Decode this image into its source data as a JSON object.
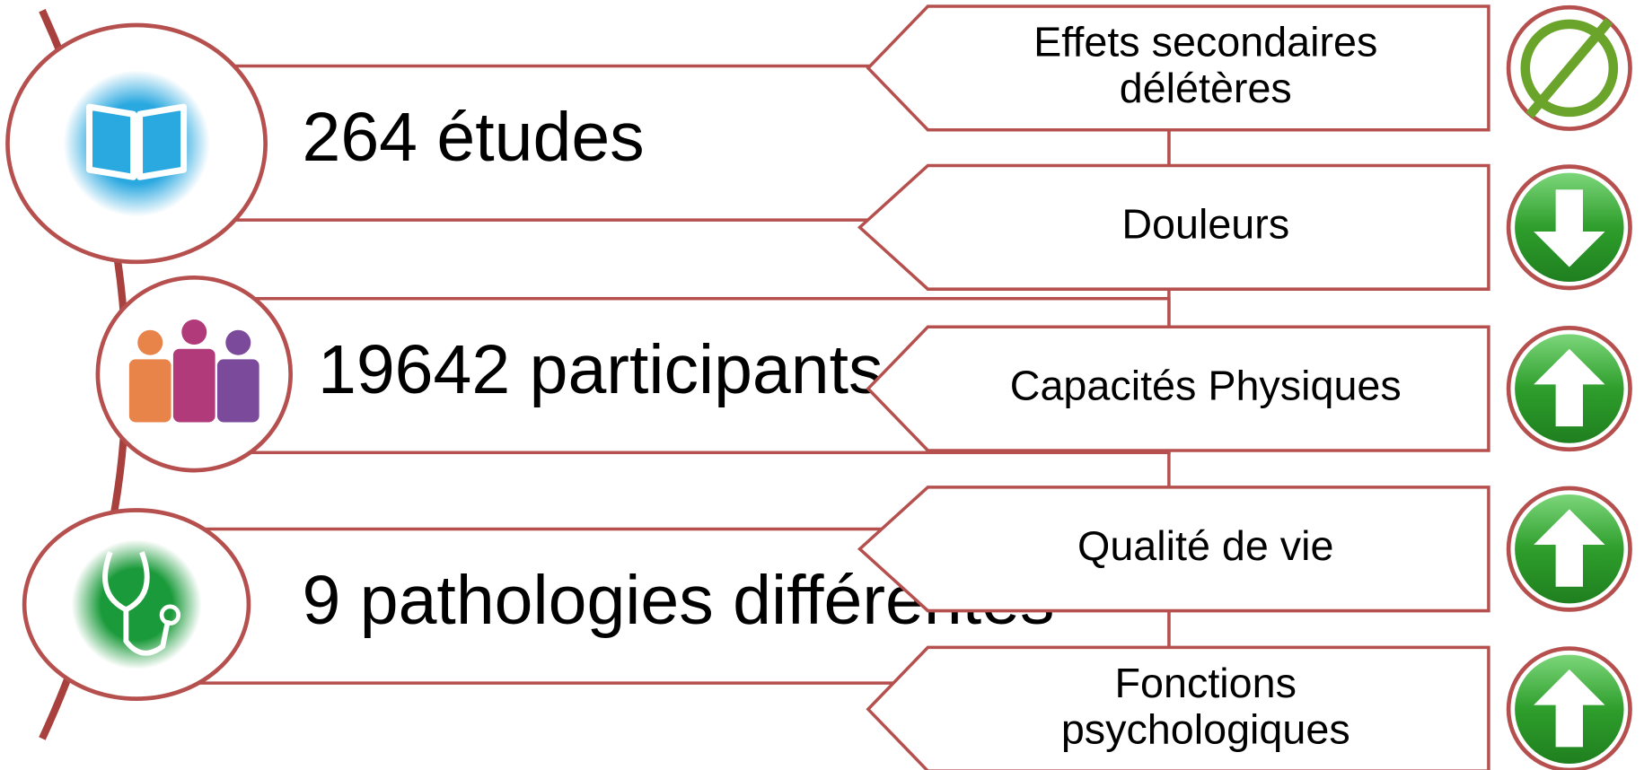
{
  "items": [
    {
      "text": "264 études"
    },
    {
      "text": "19642 participants"
    },
    {
      "text": "9 pathologies différentes"
    }
  ],
  "effects": [
    {
      "lines": [
        "Effets secondaires",
        "délétères"
      ],
      "icon": "none"
    },
    {
      "lines": [
        "Douleurs"
      ],
      "icon": "down"
    },
    {
      "lines": [
        "Capacités Physiques"
      ],
      "icon": "up"
    },
    {
      "lines": [
        "Qualité de vie"
      ],
      "icon": "up"
    },
    {
      "lines": [
        "Fonctions",
        "psychologiques"
      ],
      "icon": "up"
    }
  ]
}
